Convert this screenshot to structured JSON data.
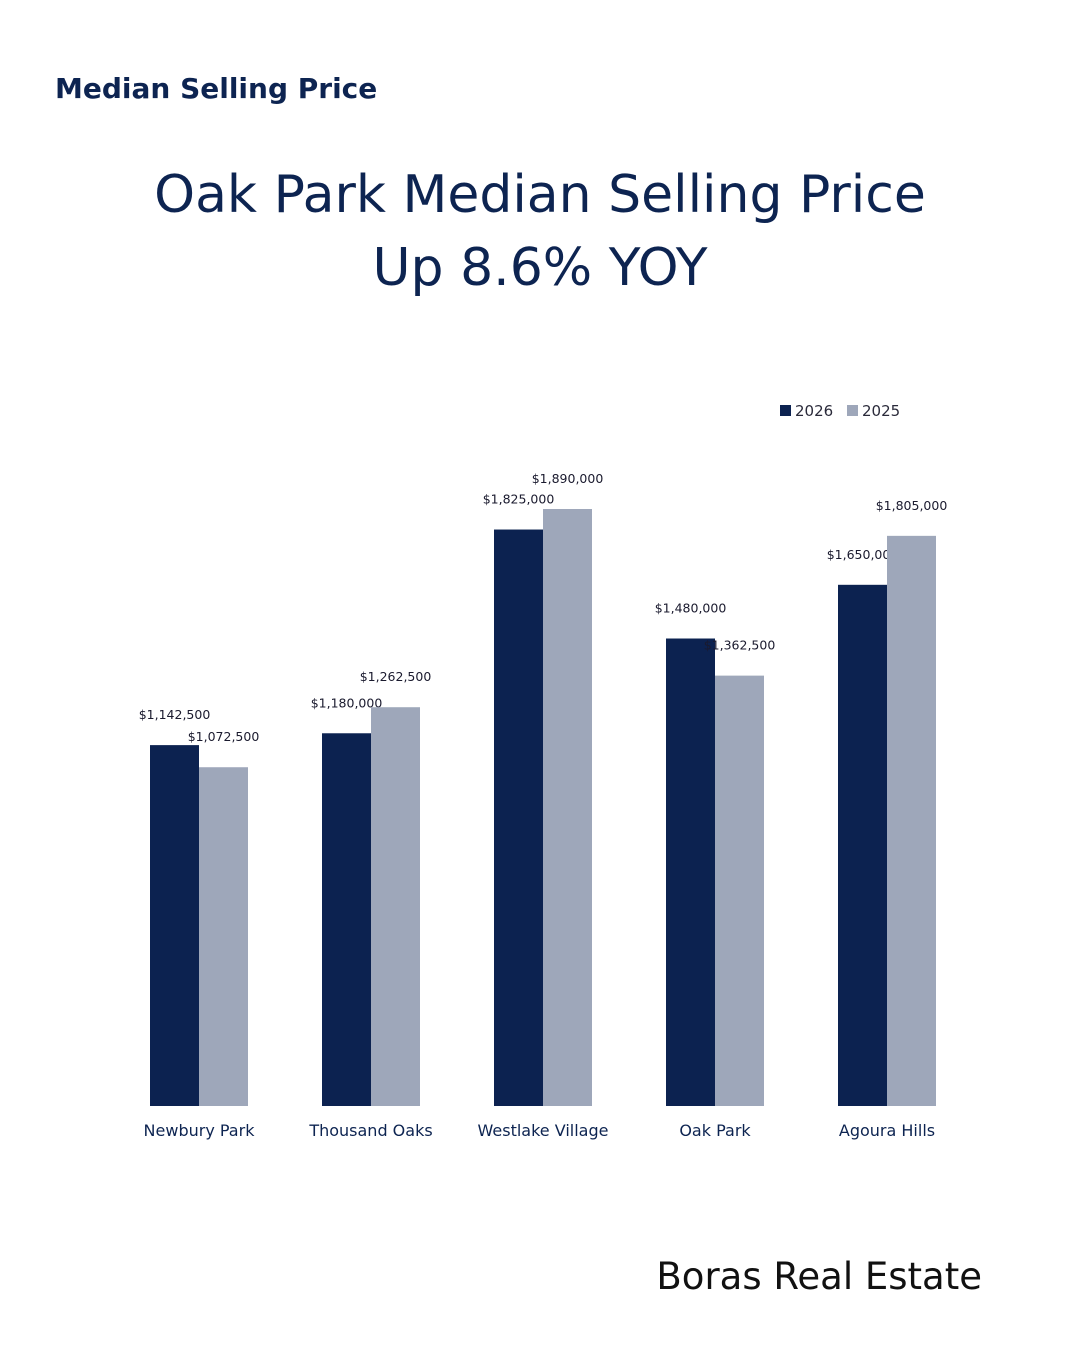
{
  "header": {
    "eyebrow": "Median Selling Price",
    "headline_line1": "Oak Park Median Selling Price",
    "headline_line2": "Up 8.6%  YOY"
  },
  "footer": {
    "brand": "Boras Real Estate"
  },
  "colors": {
    "accent": "#0d2451",
    "series_2026": "#0c2250",
    "series_2025": "#9ea7ba"
  },
  "chart_data": {
    "type": "bar",
    "categories": [
      "Newbury Park",
      "Thousand Oaks",
      "Westlake Village",
      "Oak Park",
      "Agoura Hills"
    ],
    "series": [
      {
        "name": "2026",
        "values": [
          1142500,
          1180000,
          1825000,
          1480000,
          1650000
        ],
        "labels": [
          "$1,142,500",
          "$1,180,000",
          "$1,825,000",
          "$1,480,000",
          "$1,650,000"
        ]
      },
      {
        "name": "2025",
        "values": [
          1072500,
          1262500,
          1890000,
          1362500,
          1805000
        ],
        "labels": [
          "$1,072,500",
          "$1,262,500",
          "$1,890,000",
          "$1,362,500",
          "$1,805,000"
        ]
      }
    ],
    "legend_position": "top-right",
    "ylim": [
      0,
      1890000
    ],
    "grid": false
  }
}
